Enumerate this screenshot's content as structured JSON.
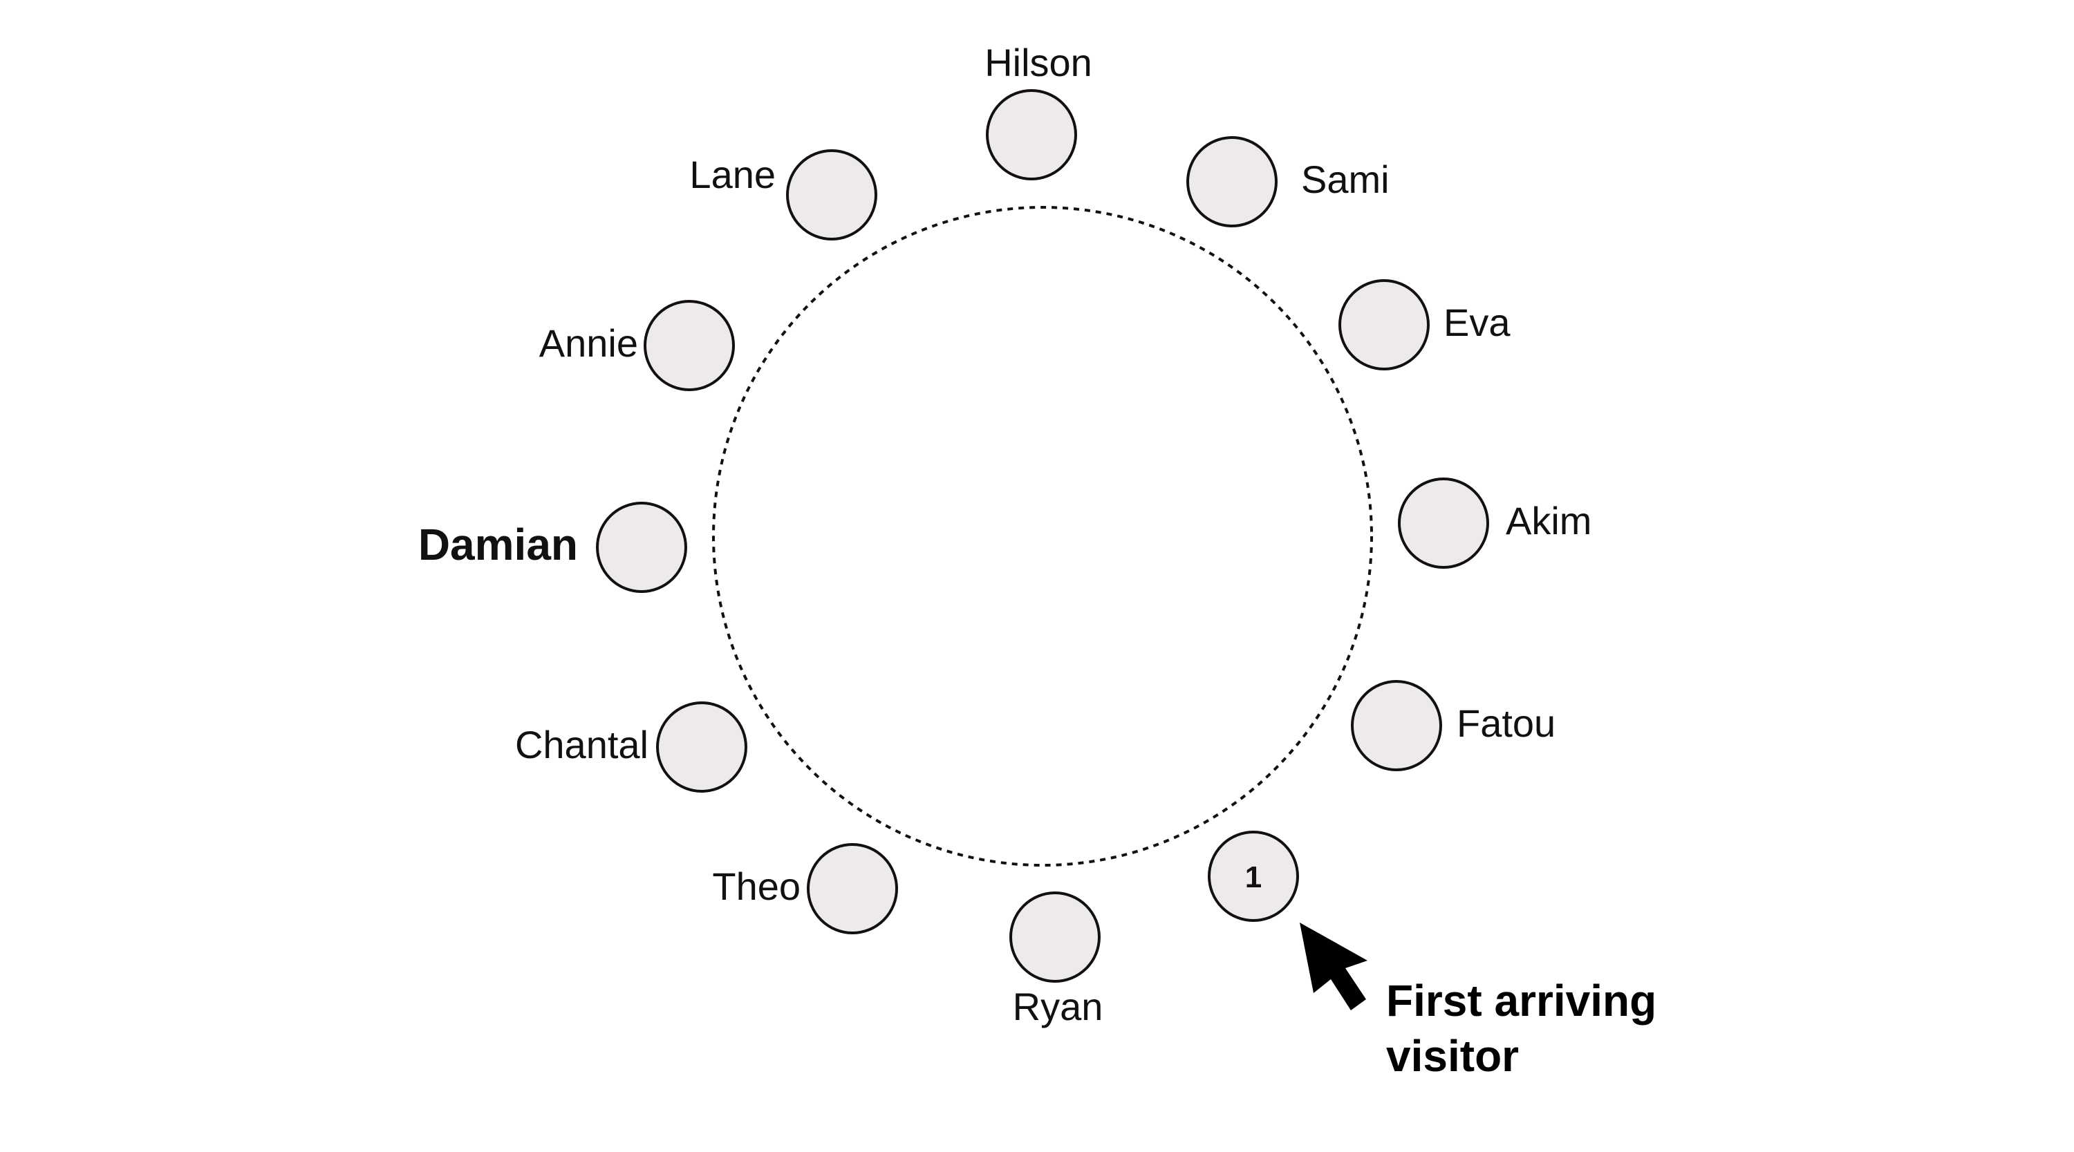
{
  "guests": {
    "hilson": "Hilson",
    "sami": "Sami",
    "eva": "Eva",
    "akim": "Akim",
    "fatou": "Fatou",
    "ryan": "Ryan",
    "theo": "Theo",
    "chantal": "Chantal",
    "damian": "Damian",
    "annie": "Annie",
    "lane": "Lane"
  },
  "first_seat_number": "1",
  "callout": {
    "line1": "First arriving",
    "line2": "visitor"
  },
  "colors": {
    "seat_fill": "#eeeaeb",
    "stroke": "#111111"
  }
}
